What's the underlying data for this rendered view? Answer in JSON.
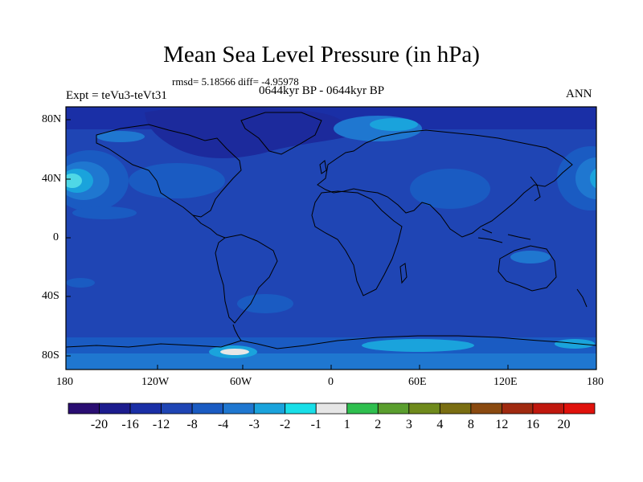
{
  "title": "Mean Sea Level Pressure (in hPa)",
  "stats": "rmsd= 5.18566 diff= -4.95978",
  "experiment": "Expt = teVu3-teVt31",
  "period": "0644kyr BP - 0644kyr BP",
  "season": "ANN",
  "axes": {
    "lat_ticks": [
      "80N",
      "40N",
      "0",
      "40S",
      "80S"
    ],
    "lon_ticks": [
      "180",
      "120W",
      "60W",
      "0",
      "60E",
      "120E",
      "180"
    ]
  },
  "colorbar": {
    "labels": [
      "-20",
      "-16",
      "-12",
      "-8",
      "-4",
      "-3",
      "-2",
      "-1",
      "1",
      "2",
      "3",
      "4",
      "8",
      "12",
      "16",
      "20"
    ],
    "colors": [
      "#2a0e72",
      "#1c1c8e",
      "#1a2fa6",
      "#1f45b4",
      "#1a5bc2",
      "#1f77d0",
      "#1aa3dc",
      "#19dfe8",
      "#e6e6e6",
      "#2fbf4f",
      "#5a9e2e",
      "#6f8a1c",
      "#7a6e12",
      "#8a4a10",
      "#a02a10",
      "#c0180e",
      "#e0120c"
    ]
  },
  "colors": {
    "background_field": "#1f45b4",
    "land_outline": "#000000"
  }
}
